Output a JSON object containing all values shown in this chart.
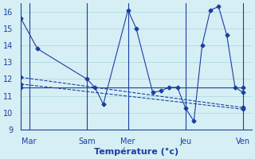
{
  "title": "Température (°c)",
  "background_color": "#d6eff5",
  "grid_color": "#aad4dc",
  "line_color": "#1a3fa0",
  "xlim": [
    0,
    28
  ],
  "ylim": [
    9,
    16.5
  ],
  "yticks": [
    9,
    10,
    11,
    12,
    13,
    14,
    15,
    16
  ],
  "xtick_positions": [
    1,
    8,
    13,
    20,
    27
  ],
  "xtick_labels": [
    "Mar",
    "Sam",
    "Mer",
    "Jeu",
    "Ven"
  ],
  "line1_x": [
    0,
    2,
    8,
    9,
    10,
    13,
    14,
    16,
    17,
    18,
    19,
    20,
    21,
    22,
    23,
    24,
    25,
    26,
    27
  ],
  "line1_y": [
    15.6,
    13.8,
    12.0,
    11.5,
    10.5,
    16.1,
    15.0,
    11.2,
    11.3,
    11.5,
    11.5,
    10.25,
    9.5,
    14.0,
    16.1,
    16.3,
    14.6,
    11.5,
    11.2
  ],
  "line2_x": [
    0,
    27
  ],
  "line2_y": [
    11.5,
    11.5
  ],
  "line3_x": [
    0,
    27
  ],
  "line3_y": [
    12.1,
    10.3
  ],
  "line4_x": [
    0,
    27
  ],
  "line4_y": [
    11.7,
    10.2
  ]
}
